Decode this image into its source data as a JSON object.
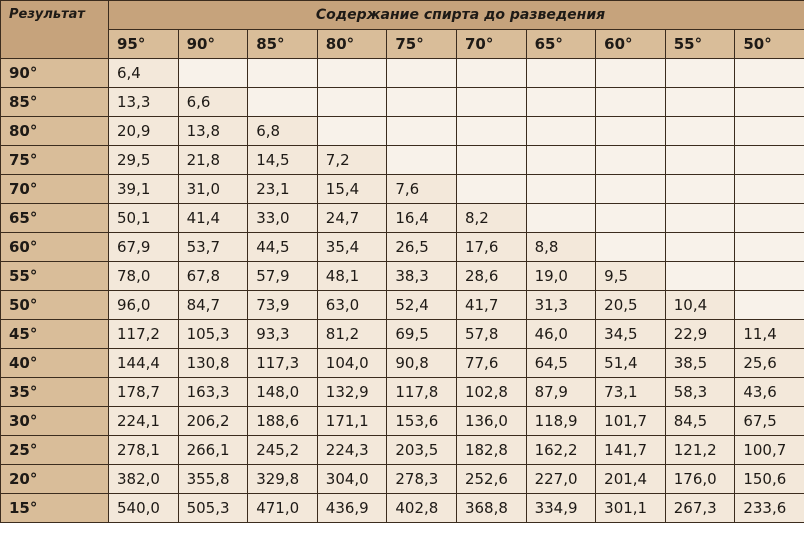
{
  "table": {
    "header": {
      "corner": "Результат",
      "group": "Содержание спирта до разведения"
    },
    "columns": [
      "95°",
      "90°",
      "85°",
      "80°",
      "75°",
      "70°",
      "65°",
      "60°",
      "55°",
      "50°"
    ],
    "rows": [
      {
        "label": "90°",
        "cells": [
          "6,4"
        ]
      },
      {
        "label": "85°",
        "cells": [
          "13,3",
          "6,6"
        ]
      },
      {
        "label": "80°",
        "cells": [
          "20,9",
          "13,8",
          "6,8"
        ]
      },
      {
        "label": "75°",
        "cells": [
          "29,5",
          "21,8",
          "14,5",
          "7,2"
        ]
      },
      {
        "label": "70°",
        "cells": [
          "39,1",
          "31,0",
          "23,1",
          "15,4",
          "7,6"
        ]
      },
      {
        "label": "65°",
        "cells": [
          "50,1",
          "41,4",
          "33,0",
          "24,7",
          "16,4",
          "8,2"
        ]
      },
      {
        "label": "60°",
        "cells": [
          "67,9",
          "53,7",
          "44,5",
          "35,4",
          "26,5",
          "17,6",
          "8,8"
        ]
      },
      {
        "label": "55°",
        "cells": [
          "78,0",
          "67,8",
          "57,9",
          "48,1",
          "38,3",
          "28,6",
          "19,0",
          "9,5"
        ]
      },
      {
        "label": "50°",
        "cells": [
          "96,0",
          "84,7",
          "73,9",
          "63,0",
          "52,4",
          "41,7",
          "31,3",
          "20,5",
          "10,4"
        ]
      },
      {
        "label": "45°",
        "cells": [
          "117,2",
          "105,3",
          "93,3",
          "81,2",
          "69,5",
          "57,8",
          "46,0",
          "34,5",
          "22,9",
          "11,4"
        ]
      },
      {
        "label": "40°",
        "cells": [
          "144,4",
          "130,8",
          "117,3",
          "104,0",
          "90,8",
          "77,6",
          "64,5",
          "51,4",
          "38,5",
          "25,6"
        ]
      },
      {
        "label": "35°",
        "cells": [
          "178,7",
          "163,3",
          "148,0",
          "132,9",
          "117,8",
          "102,8",
          "87,9",
          "73,1",
          "58,3",
          "43,6"
        ]
      },
      {
        "label": "30°",
        "cells": [
          "224,1",
          "206,2",
          "188,6",
          "171,1",
          "153,6",
          "136,0",
          "118,9",
          "101,7",
          "84,5",
          "67,5"
        ]
      },
      {
        "label": "25°",
        "cells": [
          "278,1",
          "266,1",
          "245,2",
          "224,3",
          "203,5",
          "182,8",
          "162,2",
          "141,7",
          "121,2",
          "100,7"
        ]
      },
      {
        "label": "20°",
        "cells": [
          "382,0",
          "355,8",
          "329,8",
          "304,0",
          "278,3",
          "252,6",
          "227,0",
          "201,4",
          "176,0",
          "150,6"
        ]
      },
      {
        "label": "15°",
        "cells": [
          "540,0",
          "505,3",
          "471,0",
          "436,9",
          "402,8",
          "368,8",
          "334,9",
          "301,1",
          "267,3",
          "233,6"
        ]
      }
    ]
  }
}
